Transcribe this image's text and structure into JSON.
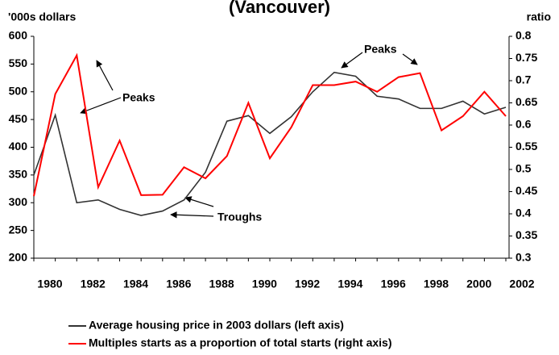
{
  "chart_data": {
    "type": "line",
    "title": "(Vancouver)",
    "y_label": "'000s dollars",
    "y2_label": "ratio",
    "categories": [
      "1980",
      null,
      "1982",
      null,
      "1984",
      null,
      "1986",
      null,
      "1988",
      null,
      "1990",
      null,
      "1992",
      null,
      "1994",
      null,
      "1996",
      null,
      "1998",
      null,
      "2000",
      null,
      "2002"
    ],
    "series": [
      {
        "name": "Average housing price in 2003 dollars (left axis)",
        "color": "#333333",
        "values": [
          350,
          458,
          300,
          305,
          288,
          277,
          285,
          305,
          355,
          447,
          457,
          425,
          455,
          500,
          535,
          528,
          492,
          487,
          470,
          470,
          483,
          460,
          472
        ]
      },
      {
        "name": "Multiples starts as a proportion of total starts (right axis)",
        "color": "#ff0000",
        "axis": "y2",
        "values": [
          0.44,
          0.67,
          0.757,
          0.46,
          0.565,
          0.442,
          0.443,
          0.505,
          0.48,
          0.53,
          0.65,
          0.525,
          0.595,
          0.69,
          0.69,
          0.698,
          0.675,
          0.708,
          0.717,
          0.588,
          0.62,
          0.675,
          0.62
        ]
      }
    ],
    "ylim": [
      200,
      600
    ],
    "yticks": [
      200,
      250,
      300,
      350,
      400,
      450,
      500,
      550,
      600
    ],
    "y2lim": [
      0.3,
      0.8
    ],
    "y2ticks": [
      0.3,
      0.35,
      0.4,
      0.45,
      0.5,
      0.55,
      0.6,
      0.65,
      0.7,
      0.75,
      0.8
    ],
    "annotations": [
      "Peaks",
      "Troughs",
      "Peaks"
    ]
  }
}
